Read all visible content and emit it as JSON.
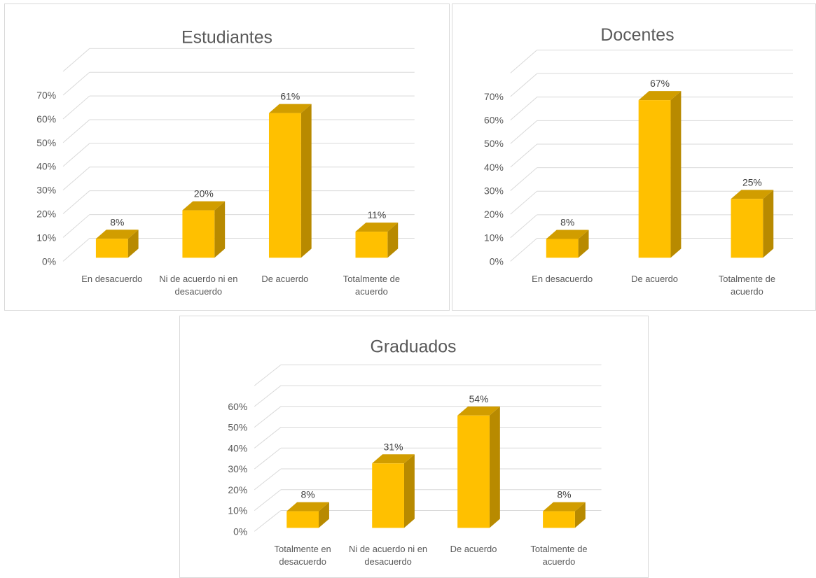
{
  "charts": [
    {
      "title": "Estudiantes",
      "chart_data": {
        "type": "bar",
        "title": "Estudiantes",
        "categories": [
          "En desacuerdo",
          "Ni de acuerdo ni en desacuerdo",
          "De acuerdo",
          "Totalmente de acuerdo"
        ],
        "values": [
          8,
          20,
          61,
          11
        ],
        "data_labels": [
          "8%",
          "20%",
          "61%",
          "11%"
        ],
        "y_ticks": [
          "0%",
          "10%",
          "20%",
          "30%",
          "40%",
          "50%",
          "60%",
          "70%"
        ],
        "ylim": [
          0,
          70
        ],
        "unit": "%",
        "bar_color": "#FFC000",
        "grid": true,
        "style": "3d-column"
      }
    },
    {
      "title": "Docentes",
      "chart_data": {
        "type": "bar",
        "title": "Docentes",
        "categories": [
          "En desacuerdo",
          "De acuerdo",
          "Totalmente de acuerdo"
        ],
        "values": [
          8,
          67,
          25
        ],
        "data_labels": [
          "8%",
          "67%",
          "25%"
        ],
        "y_ticks": [
          "0%",
          "10%",
          "20%",
          "30%",
          "40%",
          "50%",
          "60%",
          "70%"
        ],
        "ylim": [
          0,
          70
        ],
        "unit": "%",
        "bar_color": "#FFC000",
        "grid": true,
        "style": "3d-column"
      }
    },
    {
      "title": "Graduados",
      "chart_data": {
        "type": "bar",
        "title": "Graduados",
        "categories": [
          "Totalmente en desacuerdo",
          "Ni de acuerdo ni en desacuerdo",
          "De acuerdo",
          "Totalmente de acuerdo"
        ],
        "values": [
          8,
          31,
          54,
          8
        ],
        "data_labels": [
          "8%",
          "31%",
          "54%",
          "8%"
        ],
        "y_ticks": [
          "0%",
          "10%",
          "20%",
          "30%",
          "40%",
          "50%",
          "60%"
        ],
        "ylim": [
          0,
          60
        ],
        "unit": "%",
        "bar_color": "#FFC000",
        "grid": true,
        "style": "3d-column"
      }
    }
  ]
}
